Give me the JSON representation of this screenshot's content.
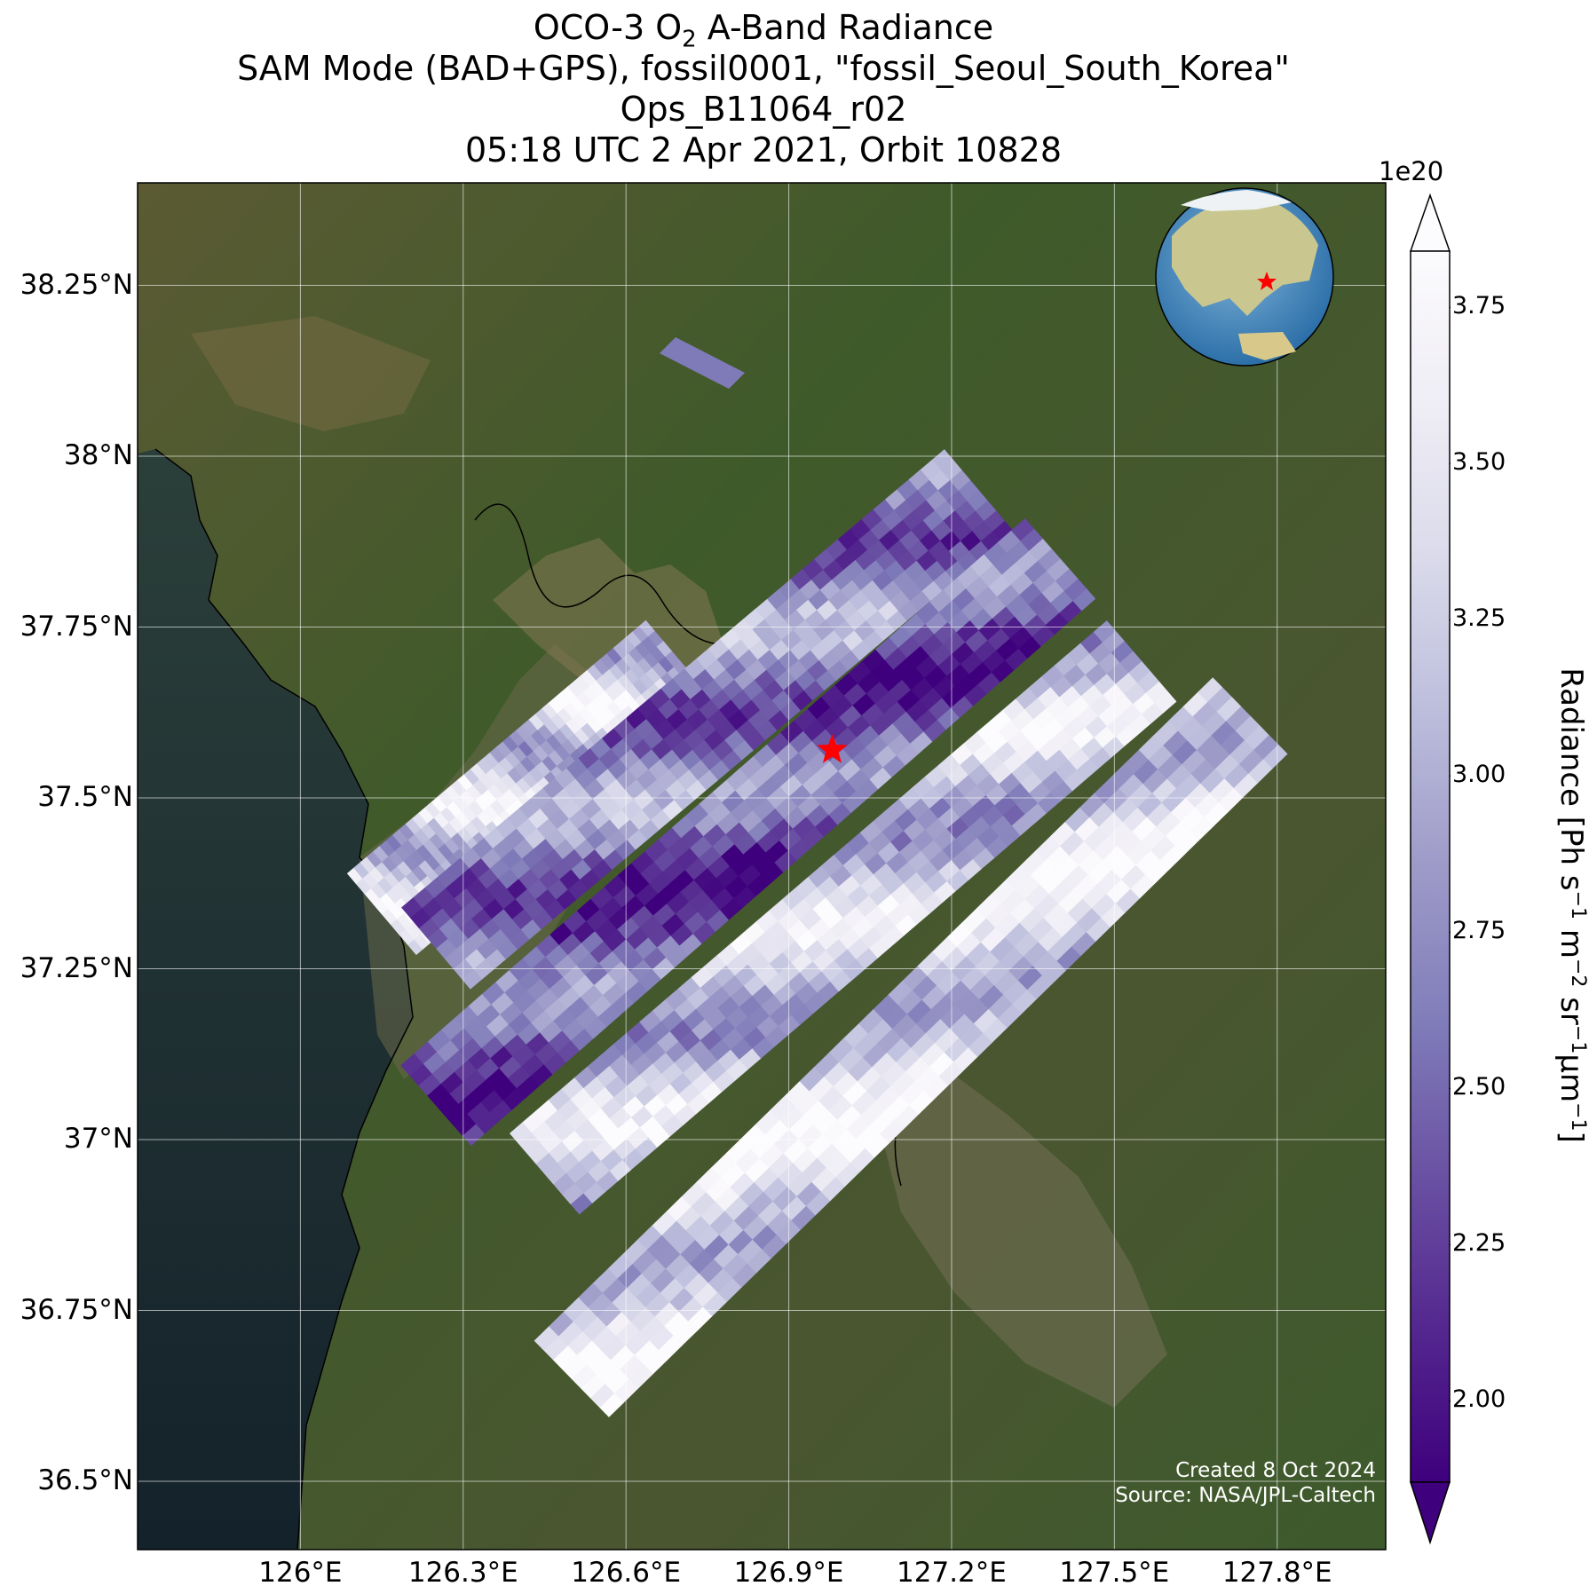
{
  "title": {
    "line1_pre": "OCO-3 O",
    "line1_sub": "2",
    "line1_post": " A-Band Radiance",
    "line2": "SAM Mode (BAD+GPS), fossil0001, \"fossil_Seoul_South_Korea\"",
    "line3": "Ops_B11064_r02",
    "line4": "05:18 UTC 2 Apr 2021, Orbit 10828"
  },
  "map": {
    "lat_ticks": [
      "38.25°N",
      "38°N",
      "37.75°N",
      "37.5°N",
      "37.25°N",
      "37°N",
      "36.75°N",
      "36.5°N"
    ],
    "lon_ticks": [
      "126°E",
      "126.3°E",
      "126.6°E",
      "126.9°E",
      "127.2°E",
      "127.5°E",
      "127.8°E"
    ],
    "lat_values": [
      38.25,
      38.0,
      37.75,
      37.5,
      37.25,
      37.0,
      36.75,
      36.5
    ],
    "lon_values": [
      126.0,
      126.3,
      126.6,
      126.9,
      127.2,
      127.5,
      127.8
    ],
    "lat_range": [
      36.4,
      38.4
    ],
    "lon_range": [
      125.7,
      128.0
    ],
    "target": {
      "name": "Seoul",
      "lat": 37.57,
      "lon": 126.98,
      "marker": "red-star"
    },
    "inset_globe": {
      "marker": "red-star"
    },
    "credit_created": "Created 8 Oct 2024",
    "credit_source": "Source: NASA/JPL-Caltech"
  },
  "colorbar": {
    "exponent": "1e20",
    "ticks": [
      "3.75",
      "3.50",
      "3.25",
      "3.00",
      "2.75",
      "2.50",
      "2.25",
      "2.00"
    ],
    "tick_values": [
      3.75,
      3.5,
      3.25,
      3.0,
      2.75,
      2.5,
      2.25,
      2.0
    ],
    "range": [
      1.87,
      3.84
    ],
    "colormap": [
      "#3f007d",
      "#54278f",
      "#6a51a3",
      "#807dba",
      "#9e9ac8",
      "#bcbddc",
      "#dadaeb",
      "#efedf5",
      "#fcfbfd"
    ],
    "extend": "both",
    "label_pre": "Radiance [Ph s",
    "label_sup1": "−1",
    "label_mid1": " m",
    "label_sup2": "−2",
    "label_mid2": " sr",
    "label_sup3": "−1",
    "label_mid3": "μm",
    "label_sup4": "−1",
    "label_post": "]"
  },
  "chart_data": {
    "type": "heatmap",
    "description_units": "radiance in 1e20 Ph s-1 m-2 sr-1 um-1",
    "swaths": [
      {
        "name": "",
        "lat_start": 37.33,
        "lon_start": 126.15,
        "lat_end": 37.7,
        "lon_end": 126.7,
        "mean": 3.3
      },
      {
        "name": "",
        "lat_start": 37.28,
        "lon_start": 126.25,
        "lat_end": 37.95,
        "lon_end": 127.25,
        "mean": 2.7
      },
      {
        "name": "",
        "lat_start": 37.05,
        "lon_start": 126.25,
        "lat_end": 37.85,
        "lon_end": 127.4,
        "mean": 2.4
      },
      {
        "name": "",
        "lat_start": 36.95,
        "lon_start": 126.45,
        "lat_end": 37.7,
        "lon_end": 127.55,
        "mean": 3.2
      },
      {
        "name": "",
        "lat_start": 36.65,
        "lon_start": 126.5,
        "lat_end": 37.62,
        "lon_end": 127.75,
        "mean": 3.4
      }
    ]
  }
}
